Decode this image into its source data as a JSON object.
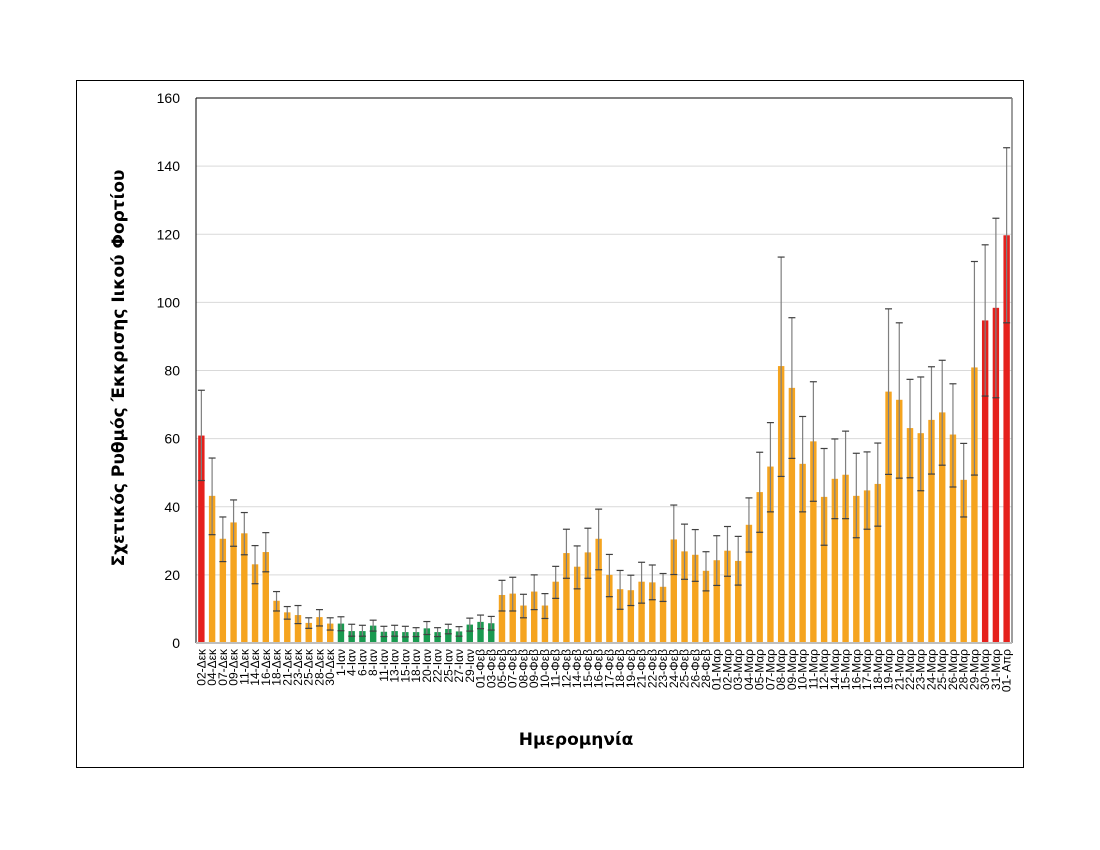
{
  "chart_data": {
    "type": "bar",
    "title": "",
    "xlabel": "Ημερομηνία",
    "ylabel": "Σχετικός Ρυθμός Έκκρισης Ιικού Φορτίου",
    "ylim": [
      0,
      160
    ],
    "yticks": [
      0,
      20,
      40,
      60,
      80,
      100,
      120,
      140,
      160
    ],
    "grid": true,
    "legend": "none",
    "colors": {
      "red": "#e5201c",
      "orange": "#f5a41f",
      "green": "#1a9a50",
      "error_bar": "#7f7f7f",
      "error_cap": "#404040"
    },
    "categories": [
      "02-Δεκ",
      "04-Δεκ",
      "07-Δεκ",
      "09-Δεκ",
      "11-Δεκ",
      "14-Δεκ",
      "16-Δεκ",
      "18-Δεκ",
      "21-Δεκ",
      "23-Δεκ",
      "25-Δεκ",
      "28-Δεκ",
      "30-Δεκ",
      "1-Ιαν",
      "4-Ιαν",
      "6-Ιαν",
      "8-Ιαν",
      "11-Ιαν",
      "13-Ιαν",
      "15-Ιαν",
      "18-Ιαν",
      "20-Ιαν",
      "22-Ιαν",
      "25-Ιαν",
      "27-Ιαν",
      "29-Ιαν",
      "01-Φεβ",
      "03-Φεβ",
      "05-Φεβ",
      "07-Φεβ",
      "08-Φεβ",
      "09-Φεβ",
      "10-Φεβ",
      "11-Φεβ",
      "12-Φεβ",
      "14-Φεβ",
      "15-Φεβ",
      "16-Φεβ",
      "17-Φεβ",
      "18-Φεβ",
      "19-Φεβ",
      "21-Φεβ",
      "22-Φεβ",
      "23-Φεβ",
      "24-Φεβ",
      "25-Φεβ",
      "26-Φεβ",
      "28-Φεβ",
      "01-Μαρ",
      "02-Μαρ",
      "03-Μαρ",
      "04-Μαρ",
      "05-Μαρ",
      "07-Μαρ",
      "08-Μαρ",
      "09-Μαρ",
      "10-Μαρ",
      "11-Μαρ",
      "12-Μαρ",
      "14-Μαρ",
      "15-Μαρ",
      "16-Μαρ",
      "17-Μαρ",
      "18-Μαρ",
      "19-Μαρ",
      "21-Μαρ",
      "22-Μαρ",
      "23-Μαρ",
      "24-Μαρ",
      "25-Μαρ",
      "26-Μαρ",
      "28-Μαρ",
      "29-Μαρ",
      "30-Μαρ",
      "31-Μαρ",
      "01- Απρ"
    ],
    "values": [
      60.9,
      43.2,
      30.6,
      35.4,
      32.2,
      23.1,
      26.7,
      12.4,
      9.0,
      8.2,
      5.9,
      7.6,
      5.7,
      5.7,
      3.5,
      3.5,
      5.1,
      3.3,
      3.5,
      3.2,
      3.2,
      4.3,
      3.2,
      4.1,
      3.4,
      5.4,
      6.2,
      5.8,
      14.1,
      14.5,
      11.0,
      15.1,
      11.0,
      18.0,
      26.4,
      22.4,
      26.6,
      30.6,
      20.0,
      15.8,
      15.5,
      18.0,
      17.8,
      16.5,
      30.4,
      26.9,
      25.9,
      21.2,
      24.3,
      27.1,
      24.1,
      34.7,
      44.3,
      51.8,
      81.3,
      74.9,
      52.6,
      59.2,
      42.9,
      48.2,
      49.4,
      43.2,
      44.8,
      46.7,
      73.8,
      71.4,
      63.1,
      61.6,
      65.5,
      67.7,
      61.2,
      47.9,
      80.9,
      94.7,
      98.4,
      119.7
    ],
    "error_lower": [
      47.7,
      31.8,
      23.9,
      28.4,
      25.9,
      17.4,
      20.9,
      9.4,
      7.0,
      5.7,
      4.3,
      5.0,
      3.8,
      3.6,
      2.0,
      2.0,
      3.5,
      1.9,
      2.0,
      1.8,
      1.9,
      2.5,
      1.9,
      2.7,
      2.0,
      3.5,
      4.2,
      3.8,
      9.4,
      9.4,
      7.4,
      9.8,
      7.2,
      13.1,
      19.0,
      15.9,
      19.0,
      21.5,
      13.6,
      9.9,
      11.0,
      11.7,
      12.7,
      12.2,
      20.1,
      18.7,
      18.1,
      15.3,
      16.9,
      19.6,
      17.0,
      26.7,
      32.5,
      38.5,
      48.9,
      54.2,
      38.5,
      41.6,
      28.7,
      36.5,
      36.5,
      30.9,
      33.4,
      34.3,
      49.5,
      48.4,
      48.5,
      44.7,
      49.6,
      52.2,
      45.8,
      37.0,
      49.3,
      72.5,
      72.0,
      94.0
    ],
    "error_upper": [
      74.2,
      54.3,
      37.0,
      42.0,
      38.3,
      28.6,
      32.4,
      15.1,
      10.7,
      11.0,
      7.4,
      9.8,
      7.4,
      7.7,
      5.5,
      5.2,
      6.7,
      4.9,
      5.2,
      4.9,
      4.5,
      6.3,
      4.5,
      5.5,
      4.8,
      7.3,
      8.2,
      7.8,
      18.4,
      19.3,
      14.3,
      20.0,
      14.5,
      22.5,
      33.4,
      28.5,
      33.7,
      39.3,
      26.0,
      21.3,
      19.9,
      23.7,
      22.9,
      20.4,
      40.5,
      34.9,
      33.3,
      26.8,
      31.5,
      34.2,
      31.3,
      42.6,
      56.0,
      64.7,
      113.3,
      95.5,
      66.5,
      76.7,
      57.1,
      59.9,
      62.2,
      55.7,
      56.1,
      58.7,
      98.1,
      94.0,
      77.4,
      78.1,
      81.1,
      83.0,
      76.1,
      58.6,
      112.0,
      116.9,
      124.7,
      145.4
    ],
    "bar_colors": [
      "red",
      "orange",
      "orange",
      "orange",
      "orange",
      "orange",
      "orange",
      "orange",
      "orange",
      "orange",
      "orange",
      "orange",
      "orange",
      "green",
      "green",
      "green",
      "green",
      "green",
      "green",
      "green",
      "green",
      "green",
      "green",
      "green",
      "green",
      "green",
      "green",
      "green",
      "orange",
      "orange",
      "orange",
      "orange",
      "orange",
      "orange",
      "orange",
      "orange",
      "orange",
      "orange",
      "orange",
      "orange",
      "orange",
      "orange",
      "orange",
      "orange",
      "orange",
      "orange",
      "orange",
      "orange",
      "orange",
      "orange",
      "orange",
      "orange",
      "orange",
      "orange",
      "orange",
      "orange",
      "orange",
      "orange",
      "orange",
      "orange",
      "orange",
      "orange",
      "orange",
      "orange",
      "orange",
      "orange",
      "orange",
      "orange",
      "orange",
      "orange",
      "orange",
      "orange",
      "orange",
      "red",
      "red",
      "red"
    ]
  }
}
